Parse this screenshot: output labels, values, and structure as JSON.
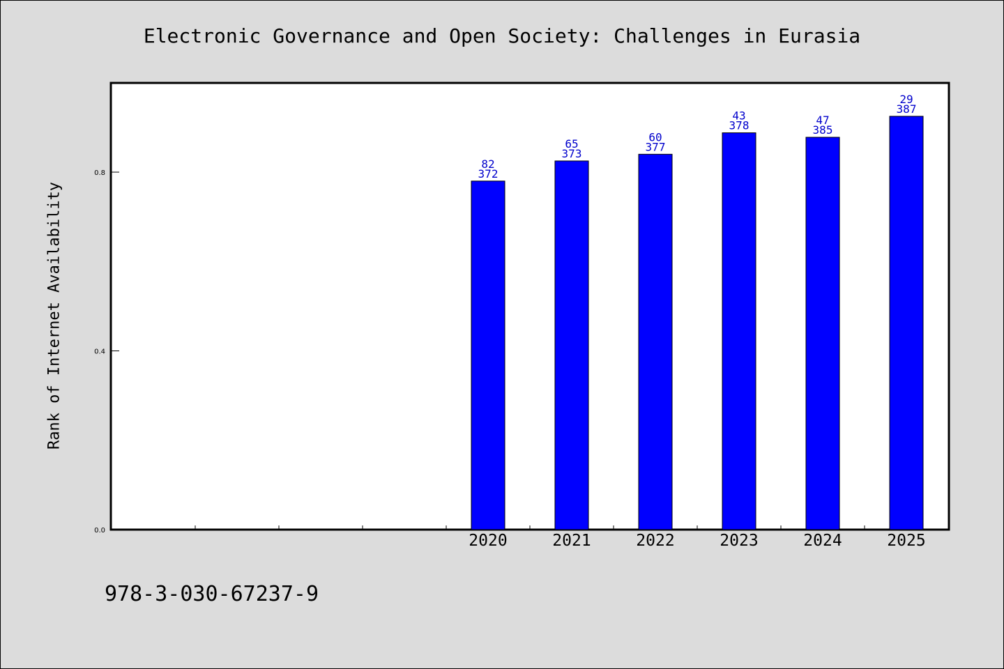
{
  "chart_data": {
    "type": "bar",
    "title": "Electronic Governance and Open Society: Challenges in Eurasia",
    "xlabel": "",
    "ylabel": "Rank of Internet Availability",
    "ylim": [
      0.0,
      1.0
    ],
    "yticks": [
      "0.0",
      "0.4",
      "0.8"
    ],
    "ytick_values": [
      0.0,
      0.4,
      0.8
    ],
    "categories": [
      "2020",
      "2021",
      "2022",
      "2023",
      "2024",
      "2025"
    ],
    "leading_empty_slots": 4,
    "values": [
      0.78,
      0.825,
      0.84,
      0.888,
      0.878,
      0.925
    ],
    "data_labels_top": [
      "82",
      "65",
      "60",
      "43",
      "47",
      "29"
    ],
    "data_labels_bottom": [
      "372",
      "373",
      "377",
      "378",
      "385",
      "387"
    ],
    "bar_color": "#0000ff",
    "label_color": "#0000cc",
    "grid": false,
    "legend": "none"
  },
  "footer": {
    "isbn": "978-3-030-67237-9"
  },
  "colors": {
    "background": "#dcdcdc",
    "plot_background": "#ffffff",
    "axis": "#000000"
  }
}
